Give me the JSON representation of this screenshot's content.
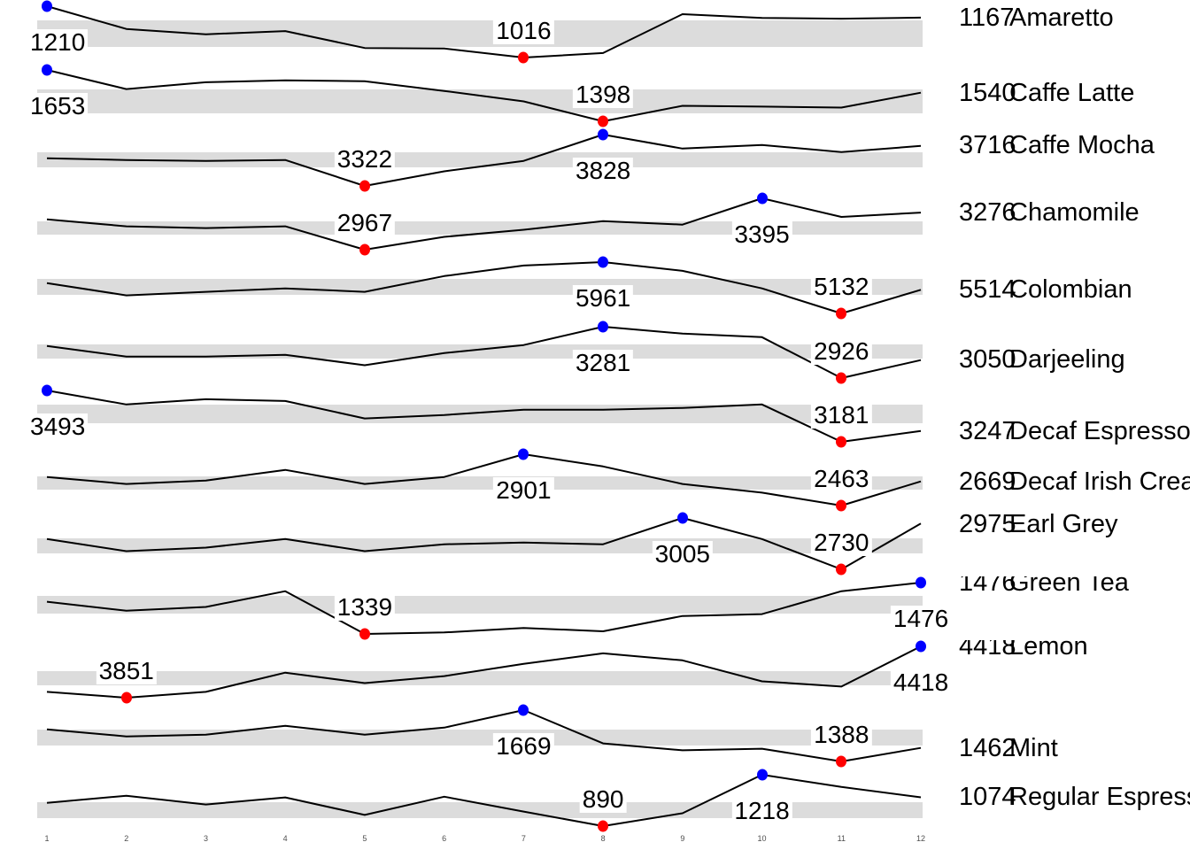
{
  "chart_data": {
    "type": "line",
    "variant": "sparklines-small-multiples",
    "title": "",
    "xlabel": "",
    "ylabel": "",
    "grid": false,
    "x": [
      1,
      2,
      3,
      4,
      5,
      6,
      7,
      8,
      9,
      10,
      11,
      12
    ],
    "x_tick_labels": [
      "1",
      "2",
      "3",
      "4",
      "5",
      "6",
      "7",
      "8",
      "9",
      "10",
      "11",
      "12"
    ],
    "legend": {
      "max_marker": "blue dot = series maximum (value labeled)",
      "min_marker": "red dot = series minimum (value labeled)",
      "band": "gray band = normal value range",
      "right_column": "last value printed beside series name"
    },
    "colors": {
      "line": "#000000",
      "max_dot": "#0000ff",
      "min_dot": "#ff0000",
      "band": "#dcdcdc",
      "text": "#000000",
      "axis_text": "#4d4d4d"
    },
    "series": [
      {
        "name": "Amaretto",
        "values": [
          1210,
          1124,
          1104,
          1116,
          1052,
          1050,
          1016,
          1033,
          1180,
          1166,
          1163,
          1167
        ],
        "min": 1016,
        "min_x": 7,
        "max": 1210,
        "max_x": 1,
        "last": 1167,
        "band": [
          1055,
          1155
        ]
      },
      {
        "name": "Caffe Latte",
        "values": [
          1653,
          1558,
          1592,
          1601,
          1597,
          1549,
          1497,
          1398,
          1475,
          1471,
          1466,
          1540
        ],
        "min": 1398,
        "min_x": 8,
        "max": 1653,
        "max_x": 1,
        "last": 1540,
        "band": [
          1440,
          1558
        ]
      },
      {
        "name": "Caffe Mocha",
        "values": [
          3595,
          3578,
          3569,
          3578,
          3322,
          3466,
          3569,
          3828,
          3690,
          3725,
          3656,
          3716
        ],
        "min": 3322,
        "min_x": 5,
        "max": 3828,
        "max_x": 8,
        "last": 3716,
        "band": [
          3505,
          3650
        ]
      },
      {
        "name": "Chamomile",
        "values": [
          3220,
          3162,
          3147,
          3162,
          2967,
          3074,
          3133,
          3205,
          3176,
          3395,
          3240,
          3276
        ],
        "min": 2967,
        "min_x": 5,
        "max": 3395,
        "max_x": 10,
        "last": 3276,
        "band": [
          3089,
          3205
        ]
      },
      {
        "name": "Colombian",
        "values": [
          5622,
          5424,
          5481,
          5537,
          5481,
          5735,
          5905,
          5961,
          5820,
          5537,
          5132,
          5514
        ],
        "min": 5132,
        "min_x": 11,
        "max": 5961,
        "max_x": 8,
        "last": 5514,
        "band": [
          5430,
          5690
        ]
      },
      {
        "name": "Darjeeling",
        "values": [
          3148,
          3075,
          3075,
          3087,
          3015,
          3099,
          3154,
          3281,
          3233,
          3209,
          2926,
          3050
        ],
        "min": 2926,
        "min_x": 11,
        "max": 3281,
        "max_x": 8,
        "last": 3050,
        "band": [
          3055,
          3155
        ]
      },
      {
        "name": "Decaf Espresso",
        "values": [
          3493,
          3408,
          3440,
          3429,
          3323,
          3344,
          3376,
          3376,
          3387,
          3408,
          3181,
          3247
        ],
        "min": 3181,
        "min_x": 11,
        "max": 3493,
        "max_x": 1,
        "last": 3247,
        "band": [
          3291,
          3408
        ]
      },
      {
        "name": "Decaf Irish Cream",
        "values": [
          2707,
          2647,
          2677,
          2767,
          2647,
          2707,
          2901,
          2797,
          2647,
          2573,
          2463,
          2669
        ],
        "min": 2463,
        "min_x": 11,
        "max": 2901,
        "max_x": 7,
        "last": 2669,
        "band": [
          2600,
          2715
        ]
      },
      {
        "name": "Earl Grey",
        "values": [
          2892,
          2827,
          2846,
          2892,
          2827,
          2864,
          2873,
          2864,
          3005,
          2892,
          2730,
          2975
        ],
        "min": 2730,
        "min_x": 11,
        "max": 3005,
        "max_x": 9,
        "last": 2975,
        "band": [
          2818,
          2898
        ]
      },
      {
        "name": "Green Tea",
        "values": [
          1425,
          1401,
          1411,
          1453,
          1339,
          1343,
          1355,
          1346,
          1387,
          1392,
          1453,
          1476
        ],
        "min": 1339,
        "min_x": 5,
        "max": 1476,
        "max_x": 12,
        "last": 1476,
        "band": [
          1392,
          1439
        ]
      },
      {
        "name": "Lemon",
        "values": [
          3916,
          3851,
          3916,
          4128,
          4012,
          4090,
          4225,
          4341,
          4264,
          4032,
          3974,
          4418
        ],
        "min": 3851,
        "min_x": 2,
        "max": 4418,
        "max_x": 12,
        "last": 4418,
        "band": [
          3986,
          4148
        ]
      },
      {
        "name": "Mint",
        "values": [
          1564,
          1525,
          1535,
          1583,
          1535,
          1573,
          1669,
          1487,
          1449,
          1458,
          1388,
          1462
        ],
        "min": 1388,
        "min_x": 11,
        "max": 1669,
        "max_x": 7,
        "last": 1462,
        "band": [
          1478,
          1564
        ]
      },
      {
        "name": "Regular Espresso",
        "values": [
          1039,
          1084,
          1028,
          1073,
          961,
          1078,
          983,
          890,
          972,
          1218,
          1140,
          1074
        ],
        "min": 890,
        "min_x": 8,
        "max": 1218,
        "max_x": 10,
        "last": 1074,
        "band": [
          941,
          1041
        ]
      }
    ]
  }
}
